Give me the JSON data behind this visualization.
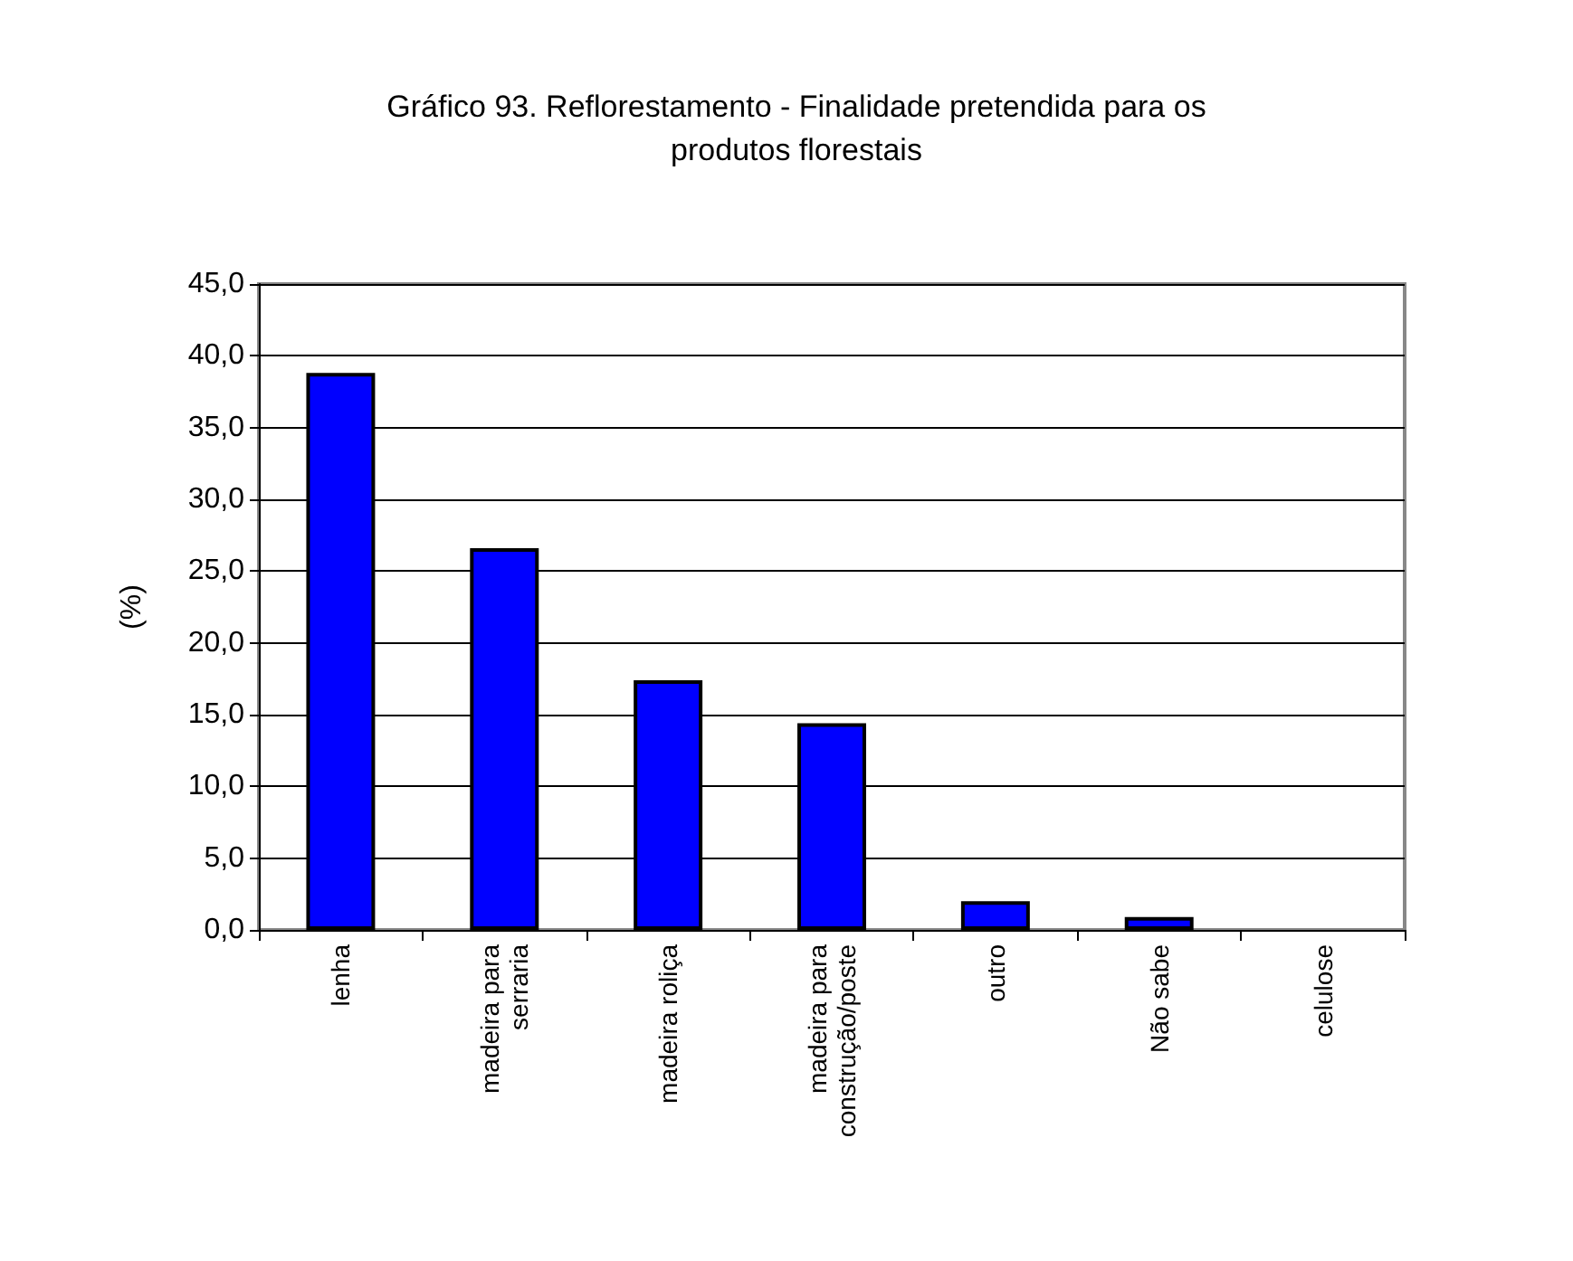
{
  "chart_data": {
    "type": "bar",
    "title": "Gráfico 93. Reflorestamento - Finalidade pretendida para os produtos florestais",
    "ylabel": "(%)",
    "categories": [
      "lenha",
      "madeira para serraria",
      "madeira roliça",
      "madeira para construção/poste",
      "outro",
      "Não sabe",
      "celulose"
    ],
    "values": [
      38.8,
      26.6,
      17.4,
      14.4,
      2.0,
      0.9,
      0
    ],
    "color": "#0000ff",
    "ylim": [
      0,
      45
    ],
    "yticks": [
      {
        "value": 0,
        "label": "0,0"
      },
      {
        "value": 5,
        "label": "5,0"
      },
      {
        "value": 10,
        "label": "10,0"
      },
      {
        "value": 15,
        "label": "15,0"
      },
      {
        "value": 20,
        "label": "20,0"
      },
      {
        "value": 25,
        "label": "25,0"
      },
      {
        "value": 30,
        "label": "30,0"
      },
      {
        "value": 35,
        "label": "35,0"
      },
      {
        "value": 40,
        "label": "40,0"
      },
      {
        "value": 45,
        "label": "45,0"
      }
    ],
    "grid": "y"
  }
}
